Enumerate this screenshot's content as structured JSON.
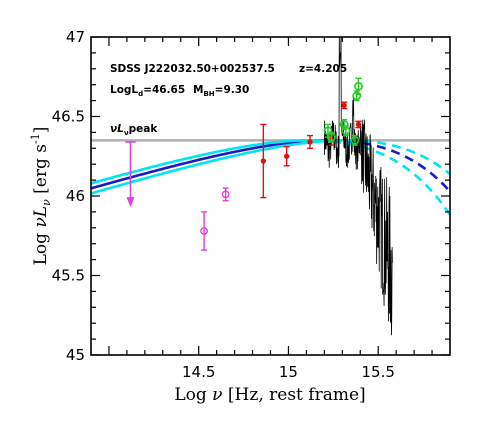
{
  "chart_data": {
    "type": "scatter",
    "xlabel": {
      "prefix": "Log ",
      "symbol": "ν",
      "rest": " [Hz, rest frame]"
    },
    "ylabel": {
      "prefix": "Log ",
      "symbol": "νL",
      "sub": "ν",
      "unit": " [erg s",
      "exp": "-1",
      "close": "]"
    },
    "xlim": [
      13.9,
      15.9
    ],
    "ylim": [
      45.0,
      47.0
    ],
    "x_ticks": [
      {
        "v": 14,
        "label": ""
      },
      {
        "v": 14.5,
        "label": "14.5"
      },
      {
        "v": 15,
        "label": "15"
      },
      {
        "v": 15.5,
        "label": "15.5"
      }
    ],
    "y_ticks": [
      {
        "v": 45,
        "label": "45"
      },
      {
        "v": 45.5,
        "label": "45.5"
      },
      {
        "v": 46,
        "label": "46"
      },
      {
        "v": 46.5,
        "label": "46.5"
      },
      {
        "v": 47,
        "label": "47"
      }
    ],
    "annotations": {
      "object": "SDSS J222032.50+002537.5",
      "redshift": "z=4.205",
      "logld_main": "LogL",
      "logld_sub": "d",
      "logld_val": "=46.65",
      "mbh_main": "M",
      "mbh_sub": "BH",
      "mbh_val": "=9.30",
      "peak_main": "νL",
      "peak_sub": "ν",
      "peak_rest": "peak"
    },
    "peak_line": {
      "y": 46.35,
      "color": "#b0b0b0"
    },
    "upper_limit": {
      "x": 14.12,
      "y_top": 46.34,
      "y_bottom": 45.93,
      "color": "#e040e0"
    },
    "disk_models": [
      {
        "name": "best",
        "color": "#1a1acc",
        "dashed_color": "#1a1acc",
        "peak": 46.35,
        "nu_peak": 15.22,
        "solid_until": 15.25
      },
      {
        "name": "upper",
        "color": "#00e5ee",
        "dashed_color": "#00e5ee",
        "peak": 46.35,
        "nu_peak": 15.32,
        "solid_until": 15.25
      },
      {
        "name": "lower",
        "color": "#00e5ee",
        "dashed_color": "#00e5ee",
        "peak": 46.35,
        "nu_peak": 15.12,
        "solid_until": 15.25
      }
    ],
    "magenta_points": [
      {
        "x": 14.53,
        "y": 45.78,
        "err": 0.12
      },
      {
        "x": 14.65,
        "y": 46.01,
        "err": 0.04
      }
    ],
    "red_points": [
      {
        "x": 14.86,
        "y": 46.22,
        "err": 0.23
      },
      {
        "x": 14.99,
        "y": 46.25,
        "err": 0.06
      },
      {
        "x": 15.12,
        "y": 46.34,
        "err": 0.04
      },
      {
        "x": 15.24,
        "y": 46.35,
        "err": 0.03
      },
      {
        "x": 15.31,
        "y": 46.57,
        "err": 0.02
      },
      {
        "x": 15.39,
        "y": 46.45,
        "err": 0.02
      }
    ],
    "green_points": [
      {
        "x": 15.22,
        "y": 46.41,
        "err": 0.04
      },
      {
        "x": 15.24,
        "y": 46.37,
        "err": 0.03
      },
      {
        "x": 15.31,
        "y": 46.45,
        "err": 0.03
      },
      {
        "x": 15.32,
        "y": 46.41,
        "err": 0.03
      },
      {
        "x": 15.37,
        "y": 46.35,
        "err": 0.03
      },
      {
        "x": 15.38,
        "y": 46.63,
        "err": 0.03
      },
      {
        "x": 15.39,
        "y": 46.69,
        "err": 0.05
      }
    ],
    "spectrum_color": "#000000"
  }
}
